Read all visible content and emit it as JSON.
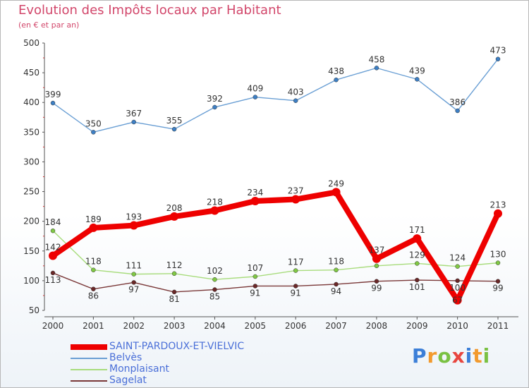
{
  "header": {
    "title": "Evolution des Impôts locaux par Habitant",
    "subtitle": "(en € et par an)"
  },
  "brand": {
    "letters": [
      {
        "char": "P",
        "color": "#3c7fd8"
      },
      {
        "char": "r",
        "color": "#f29a2e"
      },
      {
        "char": "o",
        "color": "#7ac143"
      },
      {
        "char": "x",
        "color": "#e8463f"
      },
      {
        "char": "i",
        "color": "#3c7fd8"
      },
      {
        "char": "t",
        "color": "#f29a2e"
      },
      {
        "char": "i",
        "color": "#7ac143"
      }
    ]
  },
  "chart_data": {
    "type": "line",
    "title": "Evolution des Impôts locaux par Habitant",
    "subtitle": "(en € et par an)",
    "x": [
      "2000",
      "2001",
      "2002",
      "2003",
      "2004",
      "2005",
      "2006",
      "2007",
      "2008",
      "2009",
      "2010",
      "2011"
    ],
    "yticks": [
      "50",
      "100",
      "150",
      "200",
      "250",
      "300",
      "350",
      "400",
      "450",
      "500"
    ],
    "ylim": [
      50,
      500
    ],
    "grid": false,
    "legend_position": "bottom-left",
    "series": [
      {
        "name": "SAINT-PARDOUX-ET-VIELVIC",
        "color": "#ee0000",
        "marker_color": "#ee0000",
        "values": [
          142,
          189,
          193,
          208,
          218,
          234,
          237,
          249,
          137,
          171,
          67,
          213
        ],
        "labels": [
          "142",
          "189",
          "193",
          "208",
          "218",
          "234",
          "237",
          "249",
          "137",
          "171",
          "67",
          "213"
        ]
      },
      {
        "name": "Belvès",
        "color": "#6a9fd4",
        "marker_color": "#3d7fc4",
        "values": [
          399,
          350,
          367,
          355,
          392,
          409,
          403,
          438,
          458,
          439,
          386,
          473
        ],
        "labels": [
          "399",
          "350",
          "367",
          "355",
          "392",
          "409",
          "403",
          "438",
          "458",
          "439",
          "386",
          "473"
        ]
      },
      {
        "name": "Monplaisant",
        "color": "#a8dc7c",
        "marker_color": "#80c844",
        "values": [
          184,
          118,
          111,
          112,
          102,
          107,
          117,
          118,
          125,
          129,
          124,
          130
        ],
        "labels": [
          "184",
          "118",
          "111",
          "112",
          "102",
          "107",
          "117",
          "118",
          "",
          "129",
          "124",
          "130"
        ]
      },
      {
        "name": "Sagelat",
        "color": "#7a3838",
        "marker_color": "#6a2828",
        "values": [
          113,
          86,
          97,
          81,
          85,
          91,
          91,
          94,
          99,
          101,
          100,
          99
        ],
        "labels": [
          "113",
          "86",
          "97",
          "81",
          "85",
          "91",
          "91",
          "94",
          "99",
          "101",
          "100",
          "99"
        ]
      }
    ]
  }
}
